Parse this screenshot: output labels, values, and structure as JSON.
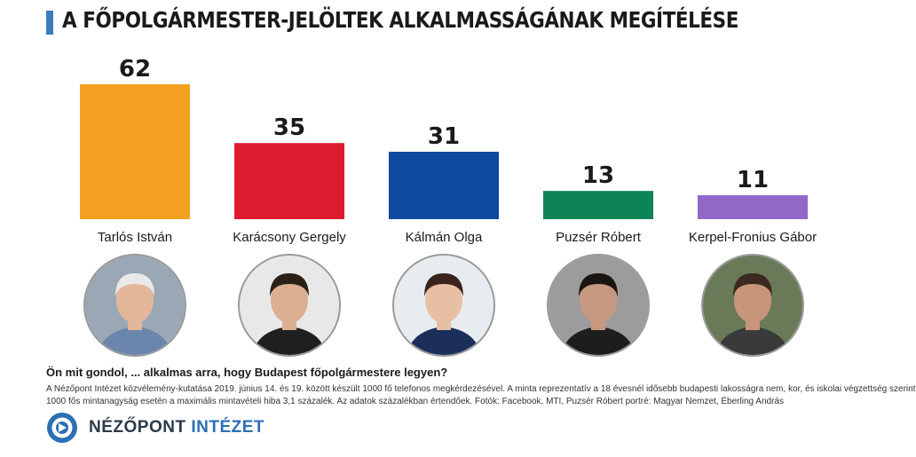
{
  "title": "A FŐPOLGÁRMESTER-JELÖLTEK ALKALMASSÁGÁNAK MEGÍTÉLÉSE",
  "colors": {
    "title_accent": "#3d7bbf",
    "logo_blue": "#2c6fb4",
    "logo_dark": "#2b3a4a"
  },
  "chart_data": {
    "type": "bar",
    "categories": [
      "Tarlós István",
      "Karácsony Gergely",
      "Kálmán Olga",
      "Puzsér Róbert",
      "Kerpel-Fronius Gábor"
    ],
    "values": [
      62,
      35,
      31,
      13,
      11
    ],
    "colors": [
      "#f3a021",
      "#dd1b2f",
      "#0e4ba0",
      "#0d8456",
      "#9168c6"
    ],
    "data_labels": [
      "62",
      "35",
      "31",
      "13",
      "11"
    ],
    "ylim": [
      0,
      62
    ],
    "grid": false,
    "legend": "none"
  },
  "portraits": [
    {
      "icon": "portrait-photo-icon",
      "skin": "#e4b79a",
      "hair": "#e9e9e9",
      "bg": "#9aa8b5",
      "shirt": "#6b86ad"
    },
    {
      "icon": "portrait-photo-icon",
      "skin": "#dcae92",
      "hair": "#2a2018",
      "bg": "#e8e8e8",
      "shirt": "#1f1f1f"
    },
    {
      "icon": "portrait-photo-icon",
      "skin": "#e9bfa4",
      "hair": "#3a231c",
      "bg": "#e6ecef",
      "shirt": "#1c2e5a"
    },
    {
      "icon": "portrait-photo-icon",
      "skin": "#c79880",
      "hair": "#1b1512",
      "bg": "#9c9c9c",
      "shirt": "#1d1d1d"
    },
    {
      "icon": "portrait-photo-icon",
      "skin": "#c9957a",
      "hair": "#3a2a20",
      "bg": "#6a7a58",
      "shirt": "#3a3a3a"
    }
  ],
  "question": "Ön mit gondol, ... alkalmas arra, hogy Budapest főpolgármestere legyen?",
  "source_line_1": "A Nézőpont Intézet közvélemény-kutatása 2019. június 14. és 19. között készült 1000 fő telefonos megkérdezésével. A minta reprezentatív a 18 évesnél idősebb budapesti lakosságra nem, kor, és iskolai végzettség szerint.",
  "source_line_2": "1000 fős mintanagyság esetén a maximális mintavételi hiba 3,1 százalék. Az adatok százalékban értendőek. Fotók: Facebook, MTI, Puzsér Róbert portré: Magyar Nemzet, Éberling András",
  "logo": {
    "icon": "nezopont-logo-icon",
    "word1": "NÉZŐPONT",
    "word2": "INTÉZET"
  }
}
